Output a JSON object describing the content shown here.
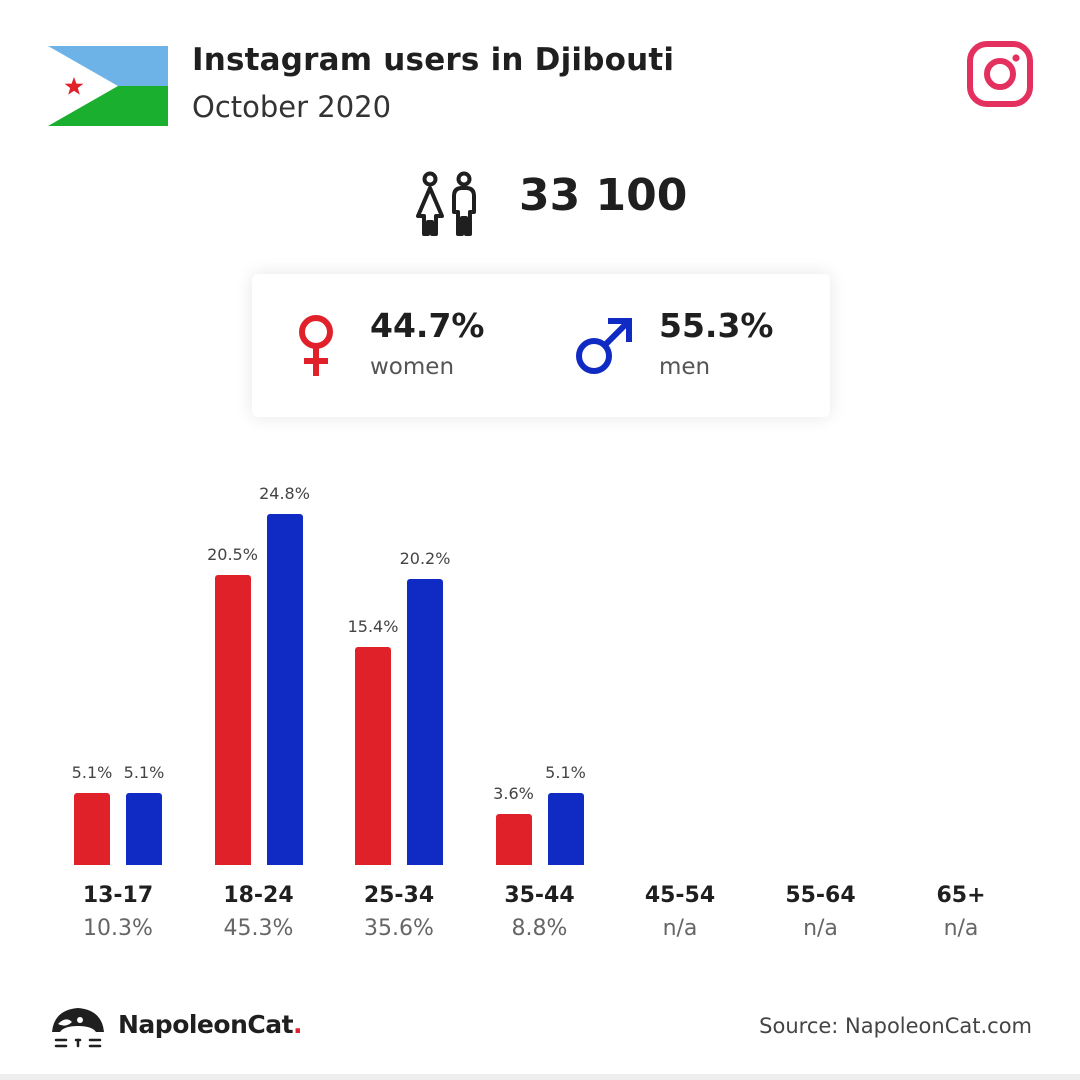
{
  "header": {
    "title": "Instagram users in Djibouti",
    "subtitle": "October 2020"
  },
  "total_users": "33 100",
  "gender": {
    "women": {
      "pct": "44.7%",
      "label": "women"
    },
    "men": {
      "pct": "55.3%",
      "label": "men"
    }
  },
  "colors": {
    "women": "#e0212a",
    "men": "#0f2bc4",
    "instagram": "#e4305f"
  },
  "chart_data": {
    "type": "bar",
    "categories": [
      "13-17",
      "18-24",
      "25-34",
      "35-44",
      "45-54",
      "55-64",
      "65+"
    ],
    "category_totals": [
      "10.3%",
      "45.3%",
      "35.6%",
      "8.8%",
      "n/a",
      "n/a",
      "n/a"
    ],
    "series": [
      {
        "name": "women",
        "values": [
          5.1,
          20.5,
          15.4,
          3.6,
          null,
          null,
          null
        ],
        "labels": [
          "5.1%",
          "20.5%",
          "15.4%",
          "3.6%",
          "",
          "",
          ""
        ]
      },
      {
        "name": "men",
        "values": [
          5.1,
          24.8,
          20.2,
          5.1,
          null,
          null,
          null
        ],
        "labels": [
          "5.1%",
          "24.8%",
          "20.2%",
          "5.1%",
          "",
          "",
          ""
        ]
      }
    ],
    "ylim": [
      0,
      24.8
    ]
  },
  "footer": {
    "brand": "NapoleonCat",
    "brand_dot": ".",
    "source": "Source: NapoleonCat.com"
  }
}
